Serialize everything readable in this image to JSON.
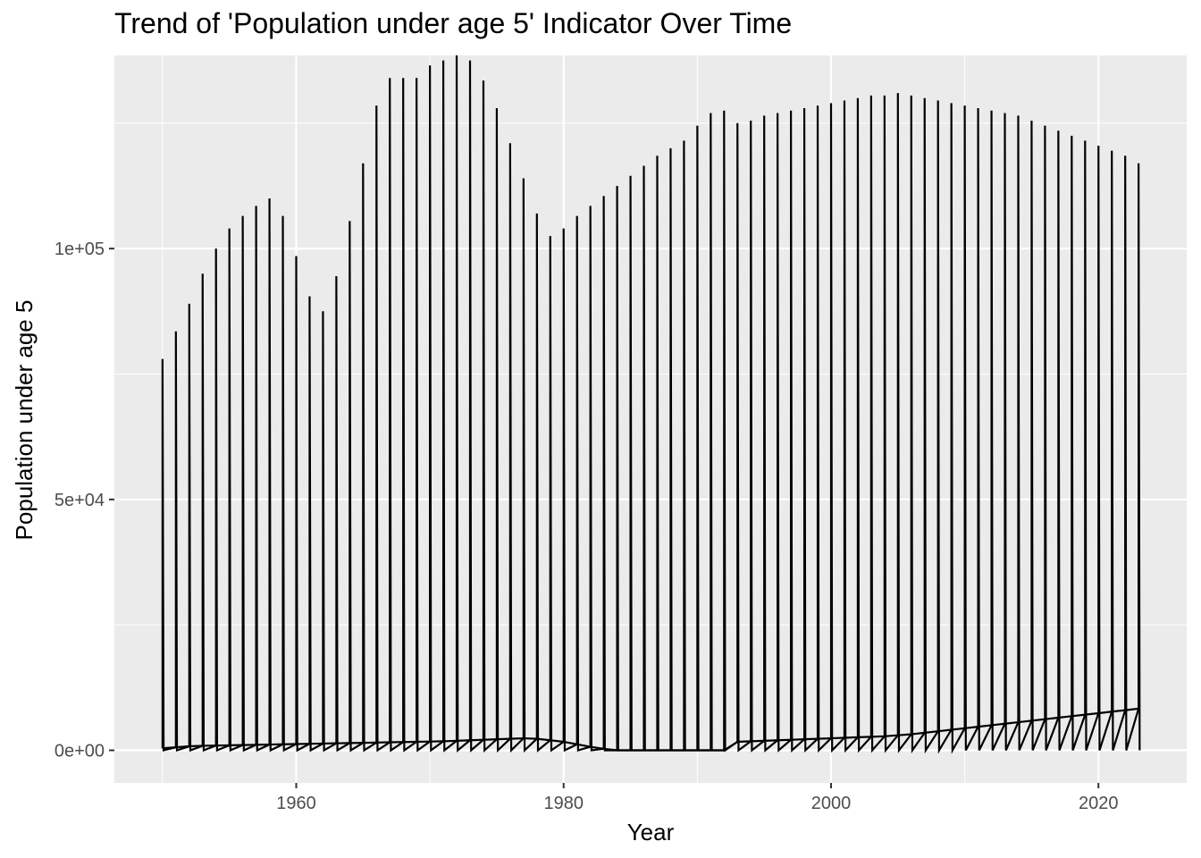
{
  "chart_data": {
    "type": "line",
    "title": "Trend of 'Population under age 5' Indicator Over Time",
    "xlabel": "Year",
    "ylabel": "Population under age 5",
    "xlim": [
      1946.4,
      1926.6
    ],
    "ylim": [
      -6500,
      138500
    ],
    "x_ticks": [
      1960,
      1980,
      2000,
      2020
    ],
    "x_tick_labels": [
      "1960",
      "1980",
      "2000",
      "2020"
    ],
    "y_ticks": [
      0,
      50000,
      100000
    ],
    "y_tick_labels": [
      "0e+00",
      "5e+04",
      "1e+05"
    ],
    "grid": true,
    "legend": "none",
    "years": [
      1950,
      1951,
      1952,
      1953,
      1954,
      1955,
      1956,
      1957,
      1958,
      1959,
      1960,
      1961,
      1962,
      1963,
      1964,
      1965,
      1966,
      1967,
      1968,
      1969,
      1970,
      1971,
      1972,
      1973,
      1974,
      1975,
      1976,
      1977,
      1978,
      1979,
      1980,
      1981,
      1982,
      1983,
      1984,
      1985,
      1986,
      1987,
      1988,
      1989,
      1990,
      1991,
      1992,
      1993,
      1994,
      1995,
      1996,
      1997,
      1998,
      1999,
      2000,
      2001,
      2002,
      2003,
      2004,
      2005,
      2006,
      2007,
      2008,
      2009,
      2010,
      2011,
      2012,
      2013,
      2014,
      2015,
      2016,
      2017,
      2018,
      2019,
      2020,
      2021,
      2022,
      2023
    ],
    "series": [
      {
        "values": [
          78000,
          83500,
          89000,
          95000,
          100000,
          104000,
          106500,
          108500,
          110000,
          106500,
          98500,
          90500,
          87500,
          94500,
          105500,
          117000,
          128500,
          134000,
          134000,
          134000,
          136500,
          137500,
          138500,
          137500,
          133500,
          128000,
          121000,
          114000,
          107000,
          102500,
          104000,
          106500,
          108500,
          110500,
          112500,
          114500,
          116500,
          118500,
          120000,
          121500,
          124500,
          127000,
          127500,
          125000,
          125500,
          126500,
          127000,
          127500,
          128000,
          128500,
          129000,
          129500,
          130000,
          130500,
          130500,
          131000,
          130500,
          130000,
          129500,
          129000,
          128500,
          128000,
          127500,
          127000,
          126500,
          125500,
          124500,
          123500,
          122500,
          121500,
          120500,
          119500,
          118500,
          117000
        ],
        "low": [
          400,
          600,
          800,
          900,
          950,
          1000,
          1050,
          1100,
          1150,
          1200,
          1250,
          1300,
          1350,
          1400,
          1450,
          1500,
          1550,
          1600,
          1650,
          1700,
          1750,
          1800,
          1900,
          2000,
          2100,
          2200,
          2300,
          2400,
          2300,
          2000,
          1700,
          1200,
          700,
          300,
          0,
          0,
          0,
          0,
          0,
          0,
          0,
          0,
          0,
          1700,
          1800,
          1900,
          2000,
          2100,
          2200,
          2300,
          2400,
          2500,
          2600,
          2700,
          2800,
          3000,
          3200,
          3500,
          3800,
          4100,
          4400,
          4700,
          5000,
          5300,
          5600,
          5900,
          6200,
          6500,
          6800,
          7100,
          7400,
          7700,
          8000,
          8300
        ]
      }
    ]
  }
}
